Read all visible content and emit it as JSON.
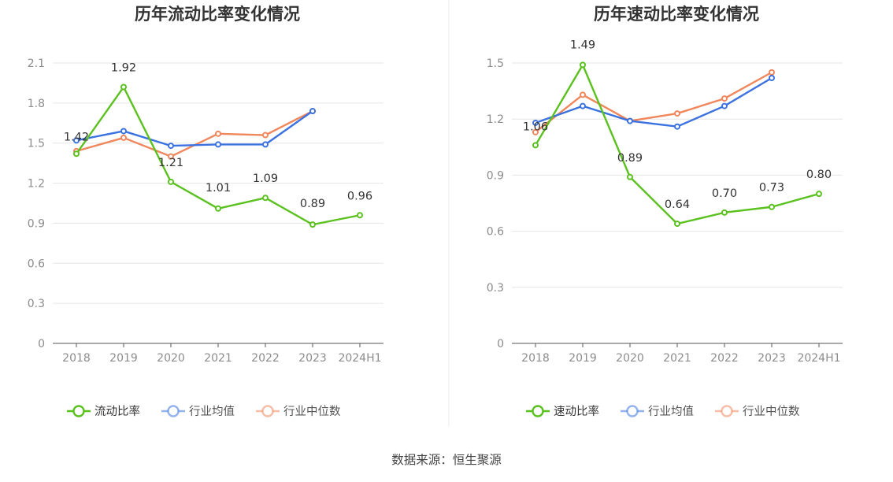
{
  "source": "数据来源：恒生聚源",
  "colors": {
    "main": "#5ac11f",
    "avg": "#3b72e0",
    "median": "#f0875c",
    "grid": "#e6e6e6",
    "axis": "#555555"
  },
  "chart_data": [
    {
      "type": "line",
      "title": "历年流动比率变化情况",
      "categories": [
        "2018",
        "2019",
        "2020",
        "2021",
        "2022",
        "2023",
        "2024H1"
      ],
      "ylim": [
        0,
        2.1
      ],
      "yticks": [
        "0",
        "0.3",
        "0.6",
        "0.9",
        "1.2",
        "1.5",
        "1.8",
        "2.1"
      ],
      "grid": true,
      "legend_position": "bottom",
      "series": [
        {
          "name": "流动比率",
          "color_key": "main",
          "values": [
            1.42,
            1.92,
            1.21,
            1.01,
            1.09,
            0.89,
            0.96
          ],
          "labels": [
            "1.42",
            "1.92",
            "1.21",
            "1.01",
            "1.09",
            "0.89",
            "0.96"
          ]
        },
        {
          "name": "行业均值",
          "color_key": "avg",
          "values": [
            1.52,
            1.59,
            1.48,
            1.49,
            1.49,
            1.74,
            null
          ]
        },
        {
          "name": "行业中位数",
          "color_key": "median",
          "values": [
            1.44,
            1.54,
            1.4,
            1.57,
            1.56,
            1.74,
            null
          ]
        }
      ]
    },
    {
      "type": "line",
      "title": "历年速动比率变化情况",
      "categories": [
        "2018",
        "2019",
        "2020",
        "2021",
        "2022",
        "2023",
        "2024H1"
      ],
      "ylim": [
        0,
        1.5
      ],
      "yticks": [
        "0",
        "0.3",
        "0.6",
        "0.9",
        "1.2",
        "1.5"
      ],
      "grid": true,
      "legend_position": "bottom",
      "series": [
        {
          "name": "速动比率",
          "color_key": "main",
          "values": [
            1.06,
            1.49,
            0.89,
            0.64,
            0.7,
            0.73,
            0.8
          ],
          "labels": [
            "1.06",
            "1.49",
            "0.89",
            "0.64",
            "0.70",
            "0.73",
            "0.80"
          ]
        },
        {
          "name": "行业均值",
          "color_key": "avg",
          "values": [
            1.18,
            1.27,
            1.19,
            1.16,
            1.27,
            1.42,
            null
          ]
        },
        {
          "name": "行业中位数",
          "color_key": "median",
          "values": [
            1.13,
            1.33,
            1.19,
            1.23,
            1.31,
            1.45,
            null
          ]
        }
      ]
    }
  ]
}
